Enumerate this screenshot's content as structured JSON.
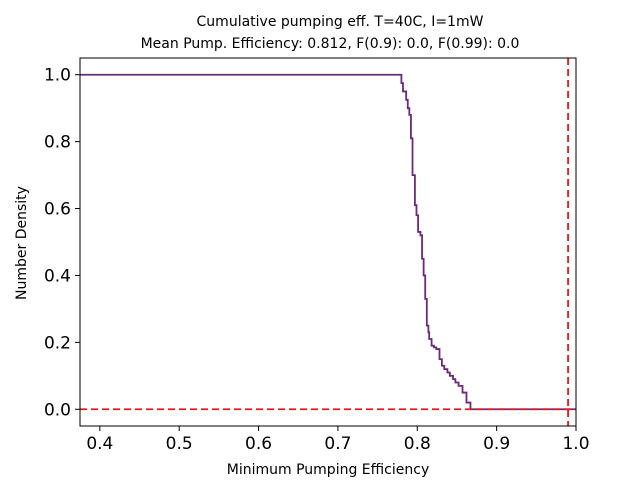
{
  "chart_data": {
    "type": "line",
    "title_line1": "Cumulative pumping eff. T=40C, I=1mW",
    "title_line2": "Mean Pump. Efficiency: 0.812, F(0.9): 0.0, F(0.99): 0.0",
    "xlabel": "Minimum Pumping Efficiency",
    "ylabel": "Number Density",
    "xlim": [
      0.375,
      1.0
    ],
    "ylim": [
      -0.05,
      1.05
    ],
    "xticks": [
      0.4,
      0.5,
      0.6,
      0.7,
      0.8,
      0.9,
      1.0
    ],
    "xtick_labels": [
      "0.4",
      "0.5",
      "0.6",
      "0.7",
      "0.8",
      "0.9",
      "1.0"
    ],
    "yticks": [
      0.0,
      0.2,
      0.4,
      0.6,
      0.8,
      1.0
    ],
    "ytick_labels": [
      "0.0",
      "0.2",
      "0.4",
      "0.6",
      "0.8",
      "1.0"
    ],
    "grid": false,
    "series": [
      {
        "color": "#6a2a7a",
        "x": [
          0.375,
          0.78,
          0.78,
          0.782,
          0.782,
          0.786,
          0.786,
          0.788,
          0.788,
          0.79,
          0.79,
          0.792,
          0.792,
          0.794,
          0.794,
          0.797,
          0.797,
          0.799,
          0.799,
          0.801,
          0.801,
          0.804,
          0.804,
          0.806,
          0.806,
          0.808,
          0.808,
          0.81,
          0.81,
          0.812,
          0.812,
          0.814,
          0.814,
          0.815,
          0.815,
          0.818,
          0.818,
          0.821,
          0.821,
          0.824,
          0.824,
          0.828,
          0.828,
          0.831,
          0.831,
          0.834,
          0.834,
          0.838,
          0.838,
          0.841,
          0.841,
          0.845,
          0.845,
          0.848,
          0.848,
          0.852,
          0.852,
          0.857,
          0.857,
          0.862,
          0.862,
          0.867,
          0.867,
          1.0
        ],
        "y": [
          1.0,
          1.0,
          0.975,
          0.975,
          0.95,
          0.95,
          0.925,
          0.925,
          0.9,
          0.9,
          0.88,
          0.88,
          0.81,
          0.81,
          0.7,
          0.7,
          0.61,
          0.61,
          0.58,
          0.58,
          0.53,
          0.53,
          0.52,
          0.52,
          0.45,
          0.45,
          0.4,
          0.4,
          0.33,
          0.33,
          0.25,
          0.25,
          0.23,
          0.23,
          0.21,
          0.21,
          0.19,
          0.19,
          0.185,
          0.185,
          0.18,
          0.18,
          0.15,
          0.15,
          0.13,
          0.13,
          0.12,
          0.12,
          0.11,
          0.11,
          0.1,
          0.1,
          0.09,
          0.09,
          0.08,
          0.08,
          0.07,
          0.07,
          0.05,
          0.05,
          0.02,
          0.02,
          0.0,
          0.0
        ]
      }
    ],
    "reference_lines": [
      {
        "orientation": "horizontal",
        "value": 0.0,
        "style": "dashed",
        "color": "#e31a1c"
      },
      {
        "orientation": "vertical",
        "value": 0.99,
        "style": "dashed",
        "color": "#e31a1c"
      }
    ]
  }
}
